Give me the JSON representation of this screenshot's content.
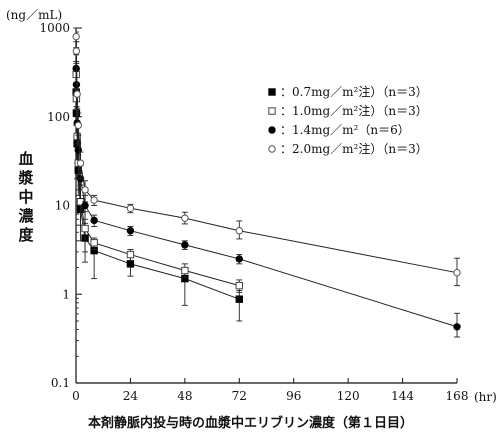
{
  "chart_data": {
    "type": "scatter",
    "title": "",
    "y_unit": "(ng／mL)",
    "x_unit": "(hr)",
    "ylabel": "血漿中濃度",
    "xlabel": "本剤静脈内投与時の血漿中エリブリン濃度（第１日目）",
    "y_scale": "log",
    "ylim": [
      0.1,
      1000
    ],
    "xlim": [
      0,
      168
    ],
    "x_ticks": [
      0,
      24,
      48,
      72,
      96,
      120,
      144,
      168
    ],
    "y_ticks": [
      0.1,
      1,
      10,
      100,
      1000
    ],
    "y_tick_labels": [
      "0.1",
      "1",
      "10",
      "100",
      "1000"
    ],
    "grid": false,
    "legend_position": "top-right",
    "series": [
      {
        "name": "：0.7mg／m²注）（n＝3）",
        "marker": "filled-square",
        "color": "#000000",
        "x": [
          0.08,
          0.17,
          0.5,
          1,
          2,
          4,
          8,
          24,
          48,
          72
        ],
        "y": [
          190,
          110,
          50,
          25,
          9,
          4.3,
          3.1,
          2.2,
          1.5,
          0.88
        ],
        "err_up": [
          90,
          60,
          30,
          12,
          6,
          2,
          0.5,
          0.5,
          0.5,
          0.22
        ],
        "err_down": [
          90,
          60,
          30,
          12,
          5,
          2,
          1.6,
          0.6,
          0.75,
          0.38
        ]
      },
      {
        "name": "：1.0mg／m²注）（n＝3）",
        "marker": "open-square",
        "color": "#555555",
        "x": [
          0.08,
          0.17,
          0.5,
          1,
          2,
          4,
          8,
          24,
          48,
          72
        ],
        "y": [
          300,
          160,
          60,
          30,
          11,
          5.5,
          3.8,
          2.8,
          1.85,
          1.25
        ],
        "err_up": [
          120,
          80,
          30,
          15,
          6,
          3,
          0.5,
          0.4,
          0.35,
          0.2
        ],
        "err_down": [
          120,
          80,
          30,
          15,
          5,
          2.5,
          0.6,
          0.4,
          0.3,
          0.2
        ]
      },
      {
        "name": "：1.4mg／m²（n＝6）",
        "marker": "filled-circle",
        "color": "#000000",
        "x": [
          0.08,
          0.17,
          0.5,
          1,
          2,
          4,
          8,
          24,
          48,
          72,
          168
        ],
        "y": [
          350,
          230,
          85,
          42,
          20,
          10,
          6.8,
          5.2,
          3.6,
          2.5,
          0.43
        ],
        "err_up": [
          150,
          100,
          40,
          20,
          8,
          3,
          1,
          0.6,
          0.4,
          0.3,
          0.18
        ],
        "err_down": [
          150,
          100,
          40,
          20,
          8,
          3,
          1,
          0.6,
          0.4,
          0.3,
          0.1
        ]
      },
      {
        "name": "：2.0mg／m²注）（n＝3）",
        "marker": "open-circle",
        "color": "#777777",
        "x": [
          0.08,
          0.17,
          0.5,
          1,
          2,
          4,
          8,
          24,
          48,
          72,
          168
        ],
        "y": [
          800,
          550,
          180,
          80,
          30,
          15,
          11.5,
          9.3,
          7.2,
          5.2,
          1.75
        ],
        "err_up": [
          200,
          150,
          60,
          30,
          10,
          4,
          1.5,
          1,
          1.2,
          1.5,
          0.8
        ],
        "err_down": [
          200,
          150,
          60,
          30,
          10,
          4,
          1.5,
          1,
          1,
          1,
          0.5
        ]
      }
    ]
  }
}
